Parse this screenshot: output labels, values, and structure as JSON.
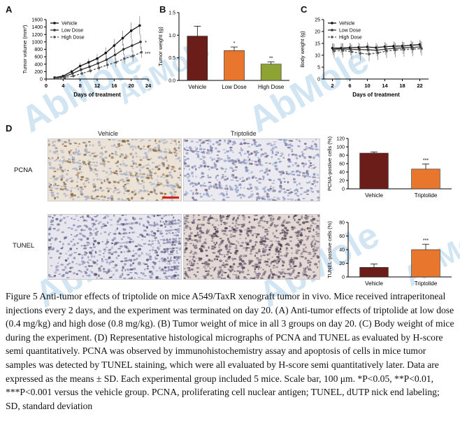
{
  "panel_labels": {
    "a": "A",
    "b": "B",
    "c": "C",
    "d": "D"
  },
  "watermark": "AbMole",
  "micrograph_headers": {
    "vehicle": "Vehicle",
    "triptolide": "Triptolide"
  },
  "row_labels": {
    "pcna": "PCNA",
    "tunel": "TUNEL"
  },
  "colors": {
    "vehicle": "#6b1d1a",
    "low_dose": "#e8762c",
    "high_dose": "#8fa334",
    "pcna_stain": "#c9b089",
    "tunel_stain": "#8a7b8e",
    "scale_bar": "#d62020"
  },
  "caption": "Figure 5 Anti-tumor effects of triptolide on mice A549/TaxR xenograft tumor in vivo. Mice received intraperitoneal injections every 2 days, and the experiment was terminated on day 20. (A) Anti-tumor effects of triptolide at low dose (0.4 mg/kg) and high dose (0.8 mg/kg). (B) Tumor weight of mice in all 3 groups on day 20. (C) Body weight of mice during the experiment. (D) Representative histological micrographs of PCNA and TUNEL as evaluated by H-score semi quantitatively. PCNA was observed by immunohistochemistry assay and apoptosis of cells in mice tumor samples was detected by TUNEL staining, which were all evaluated by H-score semi quantitatively later. Data are expressed as the means ± SD. Each experimental group included 5 mice. Scale bar, 100 μm. *P<0.05, **P<0.01, ***P<0.001 versus the vehicle group. PCNA, proliferating cell nuclear antigen; TUNEL, dUTP nick end labeling; SD, standard deviation",
  "chart_data": [
    {
      "id": "A",
      "type": "line",
      "xlabel": "Days of treatment",
      "ylabel": "Tumor volume (mm³)",
      "xlim": [
        0,
        24
      ],
      "ylim": [
        0,
        1600
      ],
      "xticks": [
        "0",
        "4",
        "8",
        "12",
        "16",
        "20",
        "24"
      ],
      "yticks": [
        "0",
        "200",
        "400",
        "600",
        "800",
        "1000",
        "1200",
        "1400",
        "1600"
      ],
      "x": [
        2,
        4,
        6,
        8,
        10,
        12,
        14,
        16,
        18,
        20,
        22
      ],
      "legend_position": "top-left",
      "series": [
        {
          "name": "Vehicle",
          "values": [
            40,
            80,
            200,
            350,
            450,
            550,
            700,
            900,
            1100,
            1300,
            1440
          ],
          "err": [
            10,
            30,
            50,
            80,
            100,
            120,
            150,
            180,
            200,
            220,
            250
          ]
        },
        {
          "name": "Low Dose",
          "values": [
            30,
            60,
            150,
            250,
            330,
            420,
            520,
            650,
            800,
            900,
            1000
          ],
          "err": [
            10,
            20,
            40,
            60,
            80,
            100,
            120,
            150,
            150,
            180,
            200
          ]
        },
        {
          "name": "High Dose",
          "values": [
            20,
            40,
            80,
            150,
            220,
            300,
            380,
            450,
            550,
            620,
            720
          ],
          "err": [
            5,
            15,
            30,
            50,
            60,
            80,
            100,
            120,
            130,
            150,
            150
          ]
        }
      ],
      "annotations": [
        "*",
        "***"
      ]
    },
    {
      "id": "B",
      "type": "bar",
      "ylabel": "Tumor weight (g)",
      "ylim": [
        0,
        1.5
      ],
      "yticks": [
        "0.0",
        "0.5",
        "1.0",
        "1.5"
      ],
      "categories": [
        "Vehicle",
        "Low Dose",
        "High Dose"
      ],
      "values": [
        0.98,
        0.66,
        0.36
      ],
      "err": [
        0.22,
        0.08,
        0.05
      ],
      "significance": [
        "",
        "*",
        "**"
      ]
    },
    {
      "id": "C",
      "type": "line",
      "xlabel": "Days of treatment",
      "ylabel": "Body weight (g)",
      "xlim": [
        0,
        24
      ],
      "ylim": [
        0,
        25
      ],
      "xticks": [
        "2",
        "6",
        "10",
        "14",
        "18",
        "22"
      ],
      "yticks": [
        "0",
        "5",
        "10",
        "15",
        "20",
        "25"
      ],
      "x": [
        2,
        4,
        6,
        8,
        10,
        12,
        14,
        16,
        18,
        20,
        22
      ],
      "legend_position": "top-left",
      "series": [
        {
          "name": "Vehicle",
          "values": [
            13,
            13,
            13.2,
            13.3,
            13.5,
            13.2,
            13.6,
            13.8,
            13.9,
            14.2,
            14.5
          ],
          "err": [
            2,
            2,
            2,
            2,
            2,
            2,
            2,
            2,
            2,
            2,
            2
          ]
        },
        {
          "name": "Low Dose",
          "values": [
            12.5,
            12.6,
            12.5,
            12.4,
            12.3,
            12.1,
            12.6,
            12.9,
            13.1,
            13.3,
            13.5
          ],
          "err": [
            2.5,
            2.5,
            2.5,
            2.5,
            2.5,
            2.5,
            2.5,
            2.5,
            2.5,
            2.5,
            2.5
          ]
        },
        {
          "name": "High Dose",
          "values": [
            11.8,
            12,
            11.5,
            10.8,
            10.5,
            11,
            11.8,
            12.2,
            12.4,
            12.6,
            12.8
          ],
          "err": [
            3,
            3,
            3,
            3,
            3,
            3,
            3,
            3,
            3,
            3,
            3
          ]
        }
      ]
    },
    {
      "id": "D-PCNA",
      "type": "bar",
      "ylabel": "PCNA-postive cells (%)",
      "ylim": [
        0,
        120
      ],
      "yticks": [
        "0",
        "20",
        "40",
        "60",
        "80",
        "100",
        "120"
      ],
      "categories": [
        "Vehicle",
        "Triptolide"
      ],
      "values": [
        85,
        47
      ],
      "err": [
        3,
        12
      ],
      "significance": [
        "",
        "***"
      ]
    },
    {
      "id": "D-TUNEL",
      "type": "bar",
      "ylabel": "TUNEL-postive cells (%)",
      "ylim": [
        0,
        80
      ],
      "yticks": [
        "0",
        "20",
        "40",
        "60",
        "80"
      ],
      "categories": [
        "Vehicle",
        "Triptolide"
      ],
      "values": [
        14,
        40
      ],
      "err": [
        5,
        8
      ],
      "significance": [
        "",
        "***"
      ]
    }
  ]
}
